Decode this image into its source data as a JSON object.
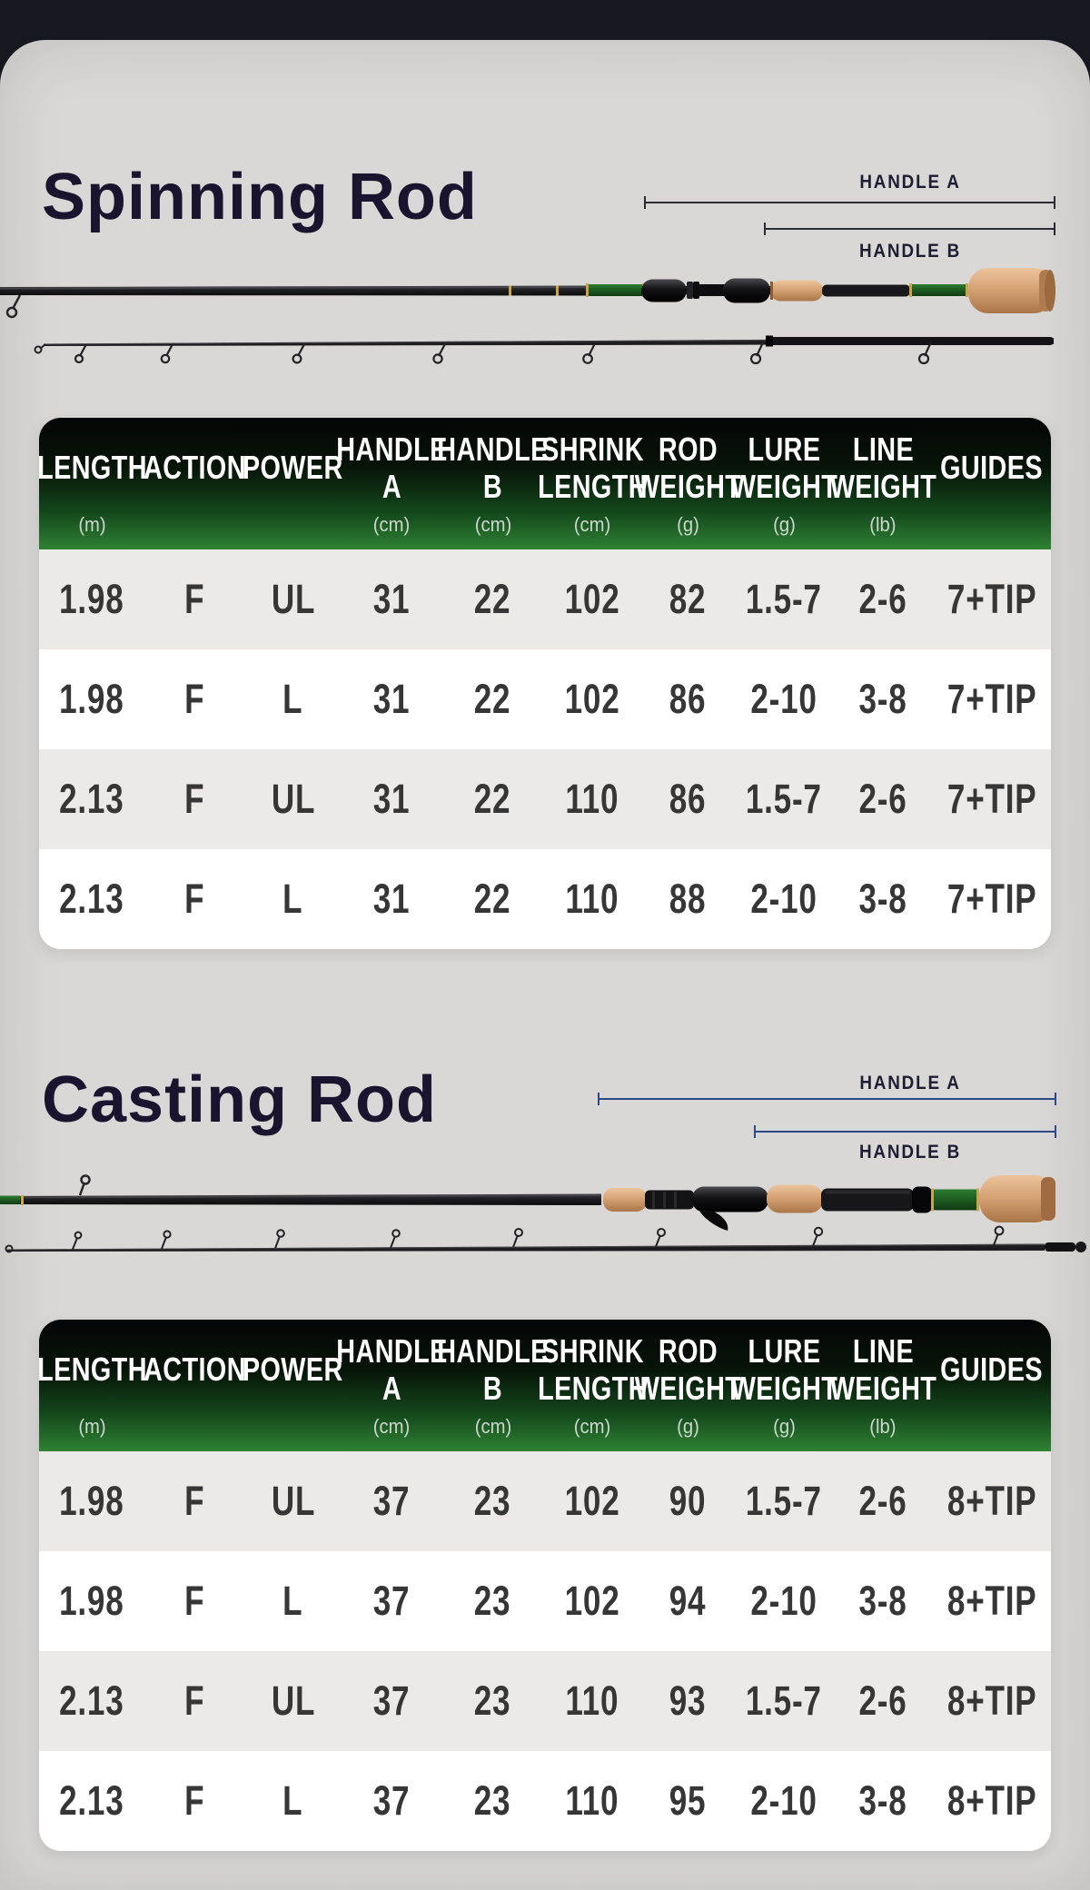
{
  "page": {
    "background": "#17171f",
    "card_background": "#d9d8d6"
  },
  "style": {
    "header_gradient_top": "#050507",
    "header_gradient_bottom": "#2e8133",
    "row_alt_color": "#ebeae9",
    "cell_text_color": "#363636",
    "title_color": "#1a142e",
    "spinning_measure_line_color": "#2b2b33",
    "casting_measure_line_color": "#2c4a88",
    "cork_color": "#d6a376",
    "blank_green_color": "#1d5a21"
  },
  "sections": [
    {
      "id": "spinning-rod",
      "title": "Spinning Rod",
      "measurements": {
        "handle_a": "HANDLE A",
        "handle_b": "HANDLE B"
      },
      "table": {
        "columns": [
          {
            "label": "LENGTH",
            "unit": "(m)"
          },
          {
            "label": "ACTION",
            "unit": ""
          },
          {
            "label": "POWER",
            "unit": ""
          },
          {
            "label": "HANDLE A",
            "unit": "(cm)"
          },
          {
            "label": "HANDLE B",
            "unit": "(cm)"
          },
          {
            "label": "SHRINK LENGTH",
            "unit": "(cm)"
          },
          {
            "label": "ROD WEIGHT",
            "unit": "(g)"
          },
          {
            "label": "LURE WEIGHT",
            "unit": "(g)"
          },
          {
            "label": "LINE WEIGHT",
            "unit": "(lb)"
          },
          {
            "label": "GUIDES",
            "unit": ""
          }
        ],
        "rows": [
          [
            "1.98",
            "F",
            "UL",
            "31",
            "22",
            "102",
            "82",
            "1.5-7",
            "2-6",
            "7+TIP"
          ],
          [
            "1.98",
            "F",
            "L",
            "31",
            "22",
            "102",
            "86",
            "2-10",
            "3-8",
            "7+TIP"
          ],
          [
            "2.13",
            "F",
            "UL",
            "31",
            "22",
            "110",
            "86",
            "1.5-7",
            "2-6",
            "7+TIP"
          ],
          [
            "2.13",
            "F",
            "L",
            "31",
            "22",
            "110",
            "88",
            "2-10",
            "3-8",
            "7+TIP"
          ]
        ]
      }
    },
    {
      "id": "casting-rod",
      "title": "Casting Rod",
      "measurements": {
        "handle_a": "HANDLE A",
        "handle_b": "HANDLE B"
      },
      "table": {
        "columns": [
          {
            "label": "LENGTH",
            "unit": "(m)"
          },
          {
            "label": "ACTION",
            "unit": ""
          },
          {
            "label": "POWER",
            "unit": ""
          },
          {
            "label": "HANDLE A",
            "unit": "(cm)"
          },
          {
            "label": "HANDLE B",
            "unit": "(cm)"
          },
          {
            "label": "SHRINK LENGTH",
            "unit": "(cm)"
          },
          {
            "label": "ROD WEIGHT",
            "unit": "(g)"
          },
          {
            "label": "LURE WEIGHT",
            "unit": "(g)"
          },
          {
            "label": "LINE WEIGHT",
            "unit": "(lb)"
          },
          {
            "label": "GUIDES",
            "unit": ""
          }
        ],
        "rows": [
          [
            "1.98",
            "F",
            "UL",
            "37",
            "23",
            "102",
            "90",
            "1.5-7",
            "2-6",
            "8+TIP"
          ],
          [
            "1.98",
            "F",
            "L",
            "37",
            "23",
            "102",
            "94",
            "2-10",
            "3-8",
            "8+TIP"
          ],
          [
            "2.13",
            "F",
            "UL",
            "37",
            "23",
            "110",
            "93",
            "1.5-7",
            "2-6",
            "8+TIP"
          ],
          [
            "2.13",
            "F",
            "L",
            "37",
            "23",
            "110",
            "95",
            "2-10",
            "3-8",
            "8+TIP"
          ]
        ]
      }
    }
  ]
}
